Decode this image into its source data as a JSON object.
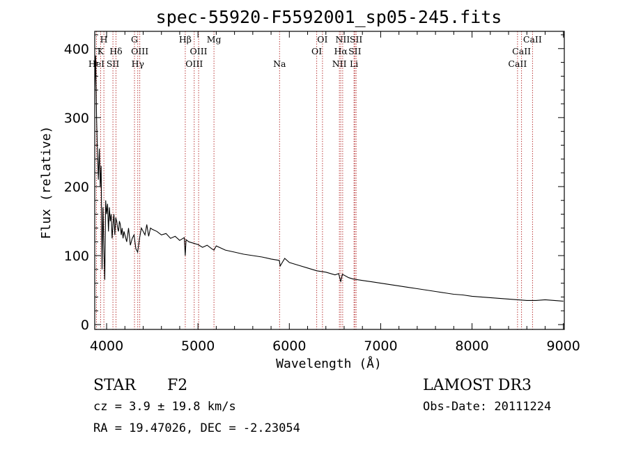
{
  "chart_data": {
    "type": "line",
    "title": "spec-55920-F5592001_sp05-245.fits",
    "xlabel": "Wavelength (Å)",
    "ylabel": "Flux (relative)",
    "xlim": [
      3870,
      9010
    ],
    "ylim": [
      -7,
      425
    ],
    "x_ticks": [
      4000,
      5000,
      6000,
      7000,
      8000,
      9000
    ],
    "y_ticks": [
      0,
      100,
      200,
      300,
      400
    ],
    "series": [
      {
        "name": "spectrum",
        "x": [
          3870,
          3880,
          3890,
          3900,
          3910,
          3920,
          3930,
          3940,
          3950,
          3960,
          3970,
          3980,
          3990,
          4000,
          4010,
          4020,
          4030,
          4040,
          4050,
          4060,
          4070,
          4080,
          4090,
          4100,
          4110,
          4120,
          4130,
          4140,
          4150,
          4160,
          4170,
          4180,
          4190,
          4200,
          4220,
          4240,
          4260,
          4280,
          4300,
          4320,
          4340,
          4360,
          4380,
          4400,
          4420,
          4440,
          4460,
          4480,
          4500,
          4550,
          4600,
          4650,
          4700,
          4750,
          4800,
          4850,
          4861,
          4870,
          4900,
          4950,
          5000,
          5050,
          5100,
          5150,
          5175,
          5200,
          5300,
          5400,
          5500,
          5600,
          5700,
          5800,
          5890,
          5900,
          5950,
          6000,
          6100,
          6200,
          6300,
          6400,
          6500,
          6540,
          6563,
          6580,
          6650,
          6700,
          6800,
          6900,
          7000,
          7100,
          7200,
          7300,
          7400,
          7500,
          7600,
          7700,
          7800,
          7900,
          8000,
          8100,
          8200,
          8300,
          8400,
          8500,
          8600,
          8700,
          8800,
          8900,
          9000
        ],
        "y": [
          340,
          390,
          300,
          250,
          210,
          255,
          200,
          230,
          80,
          170,
          110,
          65,
          180,
          160,
          175,
          135,
          170,
          150,
          160,
          125,
          145,
          160,
          130,
          155,
          150,
          140,
          135,
          150,
          145,
          130,
          140,
          125,
          135,
          130,
          120,
          140,
          115,
          125,
          130,
          110,
          105,
          125,
          140,
          135,
          130,
          145,
          128,
          140,
          138,
          135,
          130,
          132,
          125,
          128,
          122,
          126,
          100,
          123,
          120,
          118,
          116,
          112,
          115,
          110,
          108,
          114,
          108,
          105,
          102,
          100,
          98,
          95,
          93,
          85,
          96,
          90,
          86,
          82,
          78,
          76,
          72,
          74,
          62,
          73,
          68,
          66,
          64,
          62,
          60,
          58,
          56,
          54,
          52,
          50,
          48,
          46,
          44,
          43,
          41,
          40,
          39,
          38,
          37,
          36,
          35,
          35,
          36,
          35,
          34
        ]
      }
    ],
    "lines": [
      {
        "label": "H",
        "row": 0,
        "x": 3970
      },
      {
        "label": "K",
        "row": 1,
        "x": 3934
      },
      {
        "label": "HeI",
        "row": 2,
        "x": 3889
      },
      {
        "label": "SII",
        "row": 2,
        "x": 4069
      },
      {
        "label": "Hδ",
        "row": 1,
        "x": 4102
      },
      {
        "label": "G",
        "row": 0,
        "x": 4305
      },
      {
        "label": "OIII",
        "row": 1,
        "x": 4363
      },
      {
        "label": "Hγ",
        "row": 2,
        "x": 4341
      },
      {
        "label": "Hβ",
        "row": 0,
        "x": 4861
      },
      {
        "label": "OIII",
        "row": 1,
        "x": 5007
      },
      {
        "label": "OIII",
        "row": 2,
        "x": 4959
      },
      {
        "label": "Mg",
        "row": 0,
        "x": 5175
      },
      {
        "label": "Na",
        "row": 2,
        "x": 5893
      },
      {
        "label": "OI",
        "row": 0,
        "x": 6363
      },
      {
        "label": "OI",
        "row": 1,
        "x": 6300
      },
      {
        "label": "NII",
        "row": 0,
        "x": 6584
      },
      {
        "label": "SII",
        "row": 0,
        "x": 6731
      },
      {
        "label": "Hα",
        "row": 1,
        "x": 6563
      },
      {
        "label": "SII",
        "row": 1,
        "x": 6717
      },
      {
        "label": "NII",
        "row": 2,
        "x": 6548
      },
      {
        "label": "Li",
        "row": 2,
        "x": 6708
      },
      {
        "label": "CaII",
        "row": 0,
        "x": 8662
      },
      {
        "label": "CaII",
        "row": 1,
        "x": 8542
      },
      {
        "label": "CaII",
        "row": 2,
        "x": 8498
      }
    ]
  },
  "info": {
    "object_class": "STAR",
    "subclass": "F2",
    "survey": "LAMOST DR3",
    "cz": "cz = 3.9 ± 19.8 km/s",
    "obs_date": "Obs-Date: 20111224",
    "coords": "RA =  19.47026, DEC =  -2.23054"
  },
  "colors": {
    "spectrum": "#000000",
    "line_markers": "#b22222",
    "axes": "#000000"
  }
}
